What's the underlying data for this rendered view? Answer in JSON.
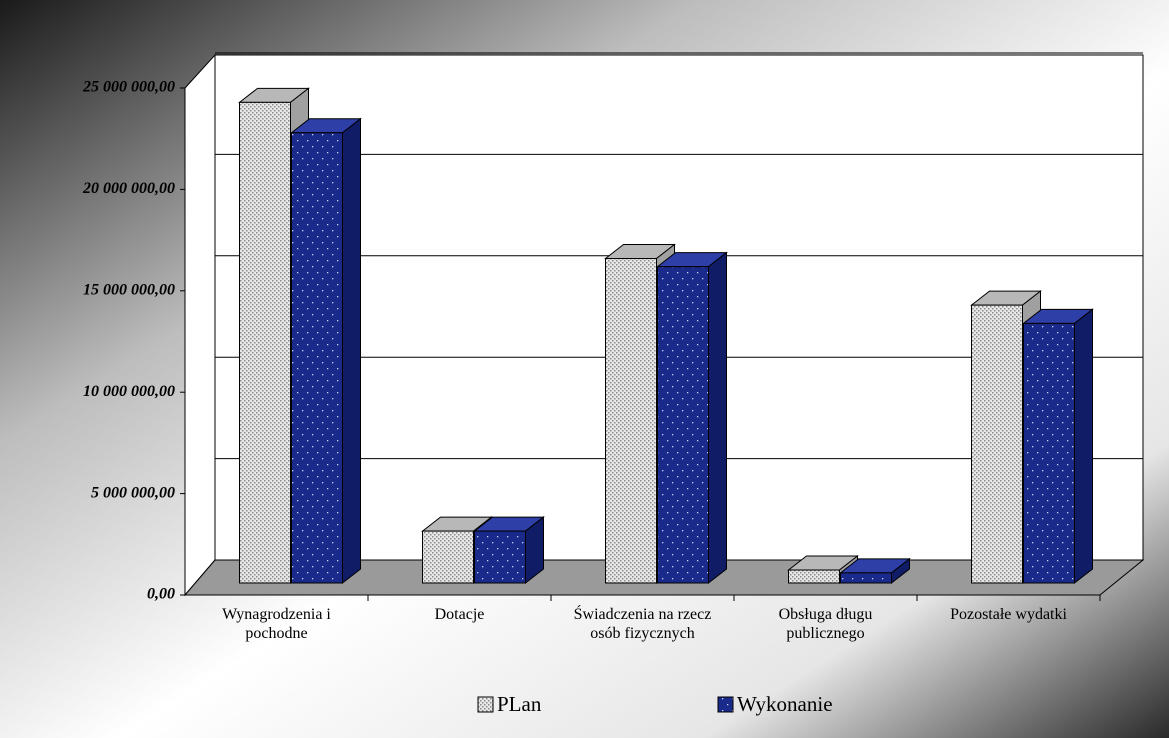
{
  "chart_data": {
    "type": "bar3d",
    "categories": [
      "Wynagrodzenia i pochodne",
      "Dotacje",
      "Świadczenia na rzecz osób fizycznych",
      "Obsługa długu publicznego",
      "Pozostałe wydatki"
    ],
    "series": [
      {
        "name": "PLan",
        "color": "#d8d8d8",
        "values": [
          23700000,
          2560000,
          16000000,
          640000,
          13700000
        ]
      },
      {
        "name": "Wykonanie",
        "color": "#1a2a8a",
        "values": [
          22200000,
          2560000,
          15600000,
          500000,
          12800000
        ]
      }
    ],
    "ylim": [
      0,
      25000000
    ],
    "yticks": [
      {
        "value": 0,
        "label": "0,00"
      },
      {
        "value": 5000000,
        "label": "5 000 000,00"
      },
      {
        "value": 10000000,
        "label": "10 000 000,00"
      },
      {
        "value": 15000000,
        "label": "15 000 000,00"
      },
      {
        "value": 20000000,
        "label": "20 000 000,00"
      },
      {
        "value": 25000000,
        "label": "25 000 000,00"
      }
    ],
    "grid": true,
    "legend": "bottom"
  }
}
